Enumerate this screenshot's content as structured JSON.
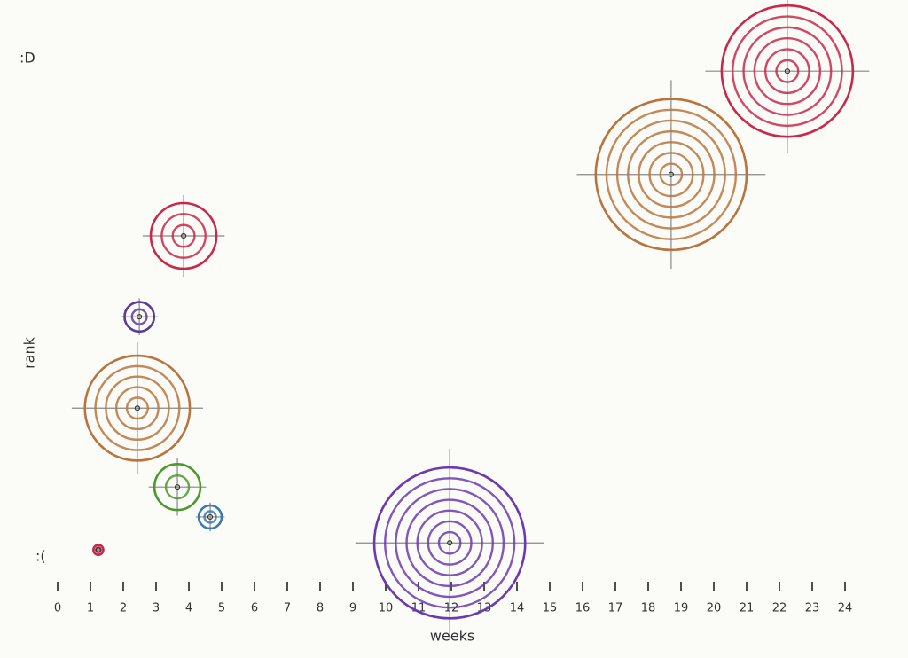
{
  "chart_data": {
    "type": "bubble",
    "xlabel": "weeks",
    "ylabel": "rank",
    "y_top_label": ":D",
    "y_bottom_label": ":(",
    "x": [
      3.84,
      2.49,
      2.43,
      3.65,
      4.65,
      1.24,
      11.95,
      18.7,
      22.24
    ],
    "values": [
      6.43,
      4.81,
      2.98,
      1.4,
      0.8,
      0.14,
      0.28,
      7.66,
      9.73
    ],
    "sizes": [
      1.0,
      0.45,
      1.6,
      0.7,
      0.35,
      0.15,
      2.3,
      2.3,
      2.0
    ],
    "colors": [
      "#c8284a",
      "#5a3a9a",
      "#b8743e",
      "#4a9a2a",
      "#3a7ab0",
      "#c8284a",
      "#6a3ab0",
      "#b8743e",
      "#c8284a"
    ],
    "xlim": [
      0,
      24
    ],
    "xticks": [
      0,
      1,
      2,
      3,
      4,
      5,
      6,
      7,
      8,
      9,
      10,
      11,
      12,
      13,
      14,
      15,
      16,
      17,
      18,
      19,
      20,
      21,
      22,
      23,
      24
    ],
    "ylim": [
      0,
      10
    ]
  }
}
